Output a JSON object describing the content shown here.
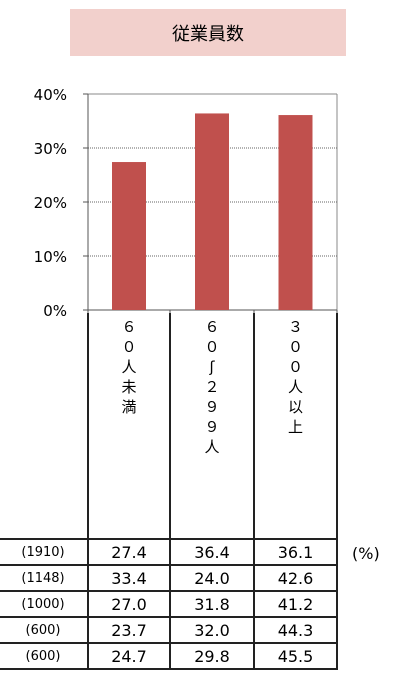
{
  "chart_data": {
    "type": "bar",
    "title": "従業員数",
    "categories": [
      "６０人未満",
      "６０〜２９９人",
      "３００人以上"
    ],
    "values": [
      27.4,
      36.4,
      36.1
    ],
    "ylim": [
      0,
      40
    ],
    "yticks": [
      "0%",
      "10%",
      "20%",
      "30%",
      "40%"
    ],
    "grid": true,
    "bar_color": "#c0504d"
  },
  "table": {
    "unit": "(%)",
    "rows": [
      {
        "n": "(1910)",
        "values": [
          "27.4",
          "36.4",
          "36.1"
        ]
      },
      {
        "n": "(1148)",
        "values": [
          "33.4",
          "24.0",
          "42.6"
        ]
      },
      {
        "n": "(1000)",
        "values": [
          "27.0",
          "31.8",
          "41.2"
        ]
      },
      {
        "n": "(600)",
        "values": [
          "23.7",
          "32.0",
          "44.3"
        ]
      },
      {
        "n": "(600)",
        "values": [
          "24.7",
          "29.8",
          "45.5"
        ]
      }
    ]
  }
}
